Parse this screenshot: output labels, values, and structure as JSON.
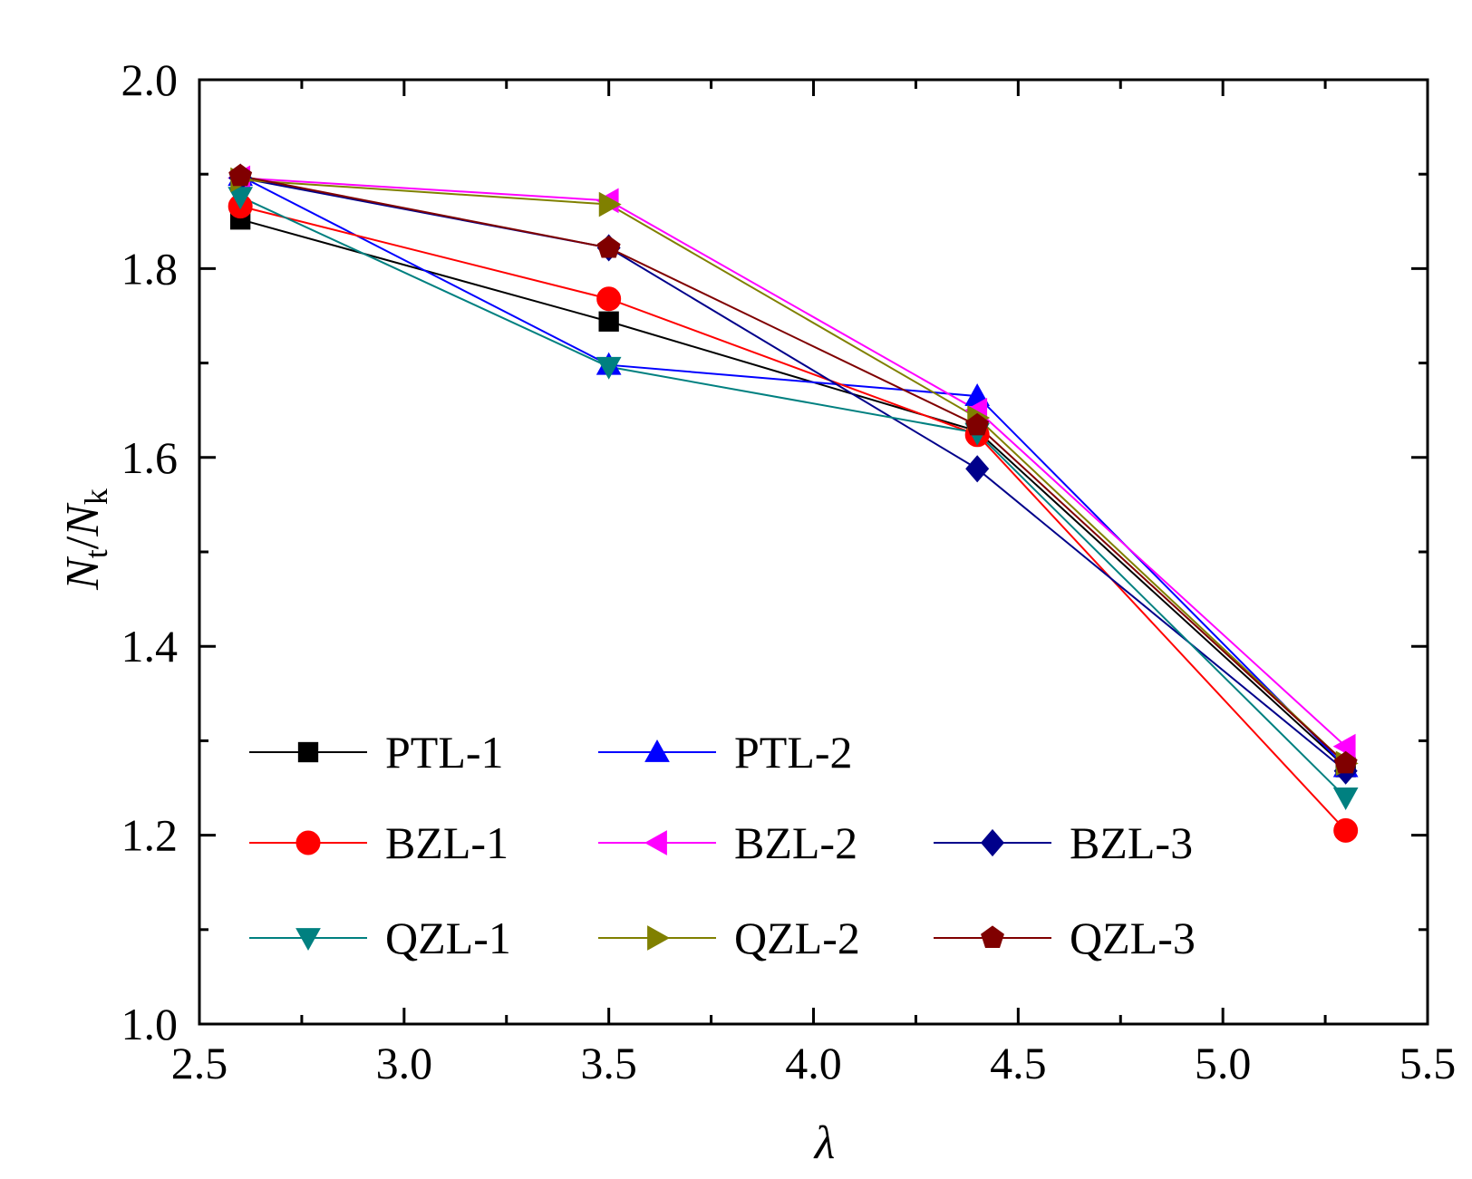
{
  "chart_data": {
    "type": "line",
    "title": "",
    "xlabel": "λ",
    "ylabel": {
      "n1": "N",
      "sub1": "t",
      "slash": "/",
      "n2": "N",
      "sub2": "k"
    },
    "xlim": [
      2.5,
      5.5
    ],
    "ylim": [
      1.0,
      2.0
    ],
    "x_ticks": [
      "2.5",
      "3.0",
      "3.5",
      "4.0",
      "4.5",
      "5.0",
      "5.5"
    ],
    "y_ticks": [
      "1.0",
      "1.2",
      "1.4",
      "1.6",
      "1.8",
      "2.0"
    ],
    "x": [
      2.6,
      3.5,
      4.4,
      5.3
    ],
    "legend_position": "lower-left",
    "series": [
      {
        "name": "PTL-1",
        "color": "#000000",
        "marker": "square",
        "values": [
          1.852,
          1.744,
          1.628,
          1.272
        ]
      },
      {
        "name": "PTL-2",
        "color": "#0000FF",
        "marker": "triangle-up",
        "values": [
          1.898,
          1.698,
          1.665,
          1.272
        ]
      },
      {
        "name": "BZL-1",
        "color": "#FF0000",
        "marker": "circle",
        "values": [
          1.866,
          1.768,
          1.624,
          1.205
        ]
      },
      {
        "name": "BZL-2",
        "color": "#FF00FF",
        "marker": "triangle-left",
        "values": [
          1.896,
          1.872,
          1.65,
          1.294
        ]
      },
      {
        "name": "BZL-3",
        "color": "#00008B",
        "marker": "diamond",
        "values": [
          1.896,
          1.822,
          1.588,
          1.268
        ]
      },
      {
        "name": "QZL-1",
        "color": "#008080",
        "marker": "triangle-down",
        "values": [
          1.876,
          1.696,
          1.626,
          1.24
        ]
      },
      {
        "name": "QZL-2",
        "color": "#808000",
        "marker": "triangle-right",
        "values": [
          1.894,
          1.868,
          1.642,
          1.276
        ]
      },
      {
        "name": "QZL-3",
        "color": "#800000",
        "marker": "pentagon",
        "values": [
          1.898,
          1.822,
          1.634,
          1.276
        ]
      }
    ]
  }
}
